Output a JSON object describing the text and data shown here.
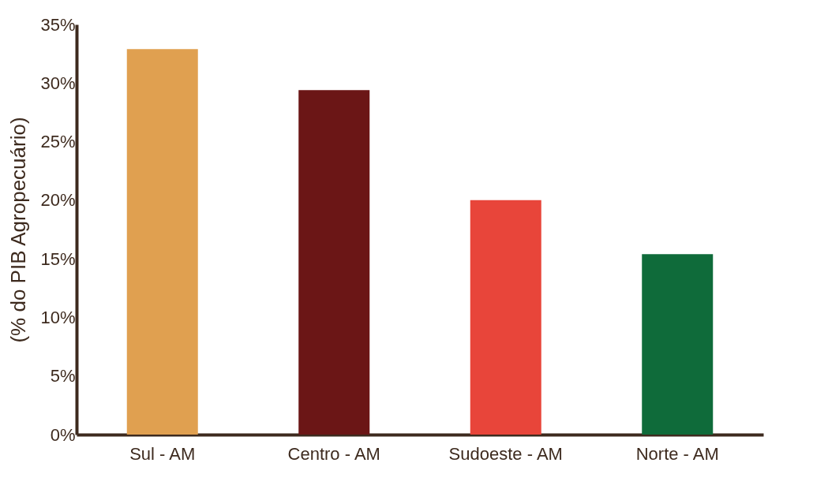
{
  "chart_data": {
    "type": "bar",
    "ylabel": "(% do PIB Agropecuário)",
    "categories": [
      "Sul - AM",
      "Centro - AM",
      "Sudoeste - AM",
      "Norte - AM"
    ],
    "values": [
      32.9,
      29.4,
      20.0,
      15.4
    ],
    "colors": [
      "#e0a050",
      "#6b1616",
      "#e8453a",
      "#0f6b3a"
    ],
    "ylim": [
      0,
      35
    ],
    "yticks": [
      {
        "value": 0,
        "label": "0%"
      },
      {
        "value": 5,
        "label": "5%"
      },
      {
        "value": 10,
        "label": "10%"
      },
      {
        "value": 15,
        "label": "15%"
      },
      {
        "value": 20,
        "label": "20%"
      },
      {
        "value": 25,
        "label": "25%"
      },
      {
        "value": 30,
        "label": "30%"
      },
      {
        "value": 35,
        "label": "35%"
      }
    ],
    "grid": false
  }
}
